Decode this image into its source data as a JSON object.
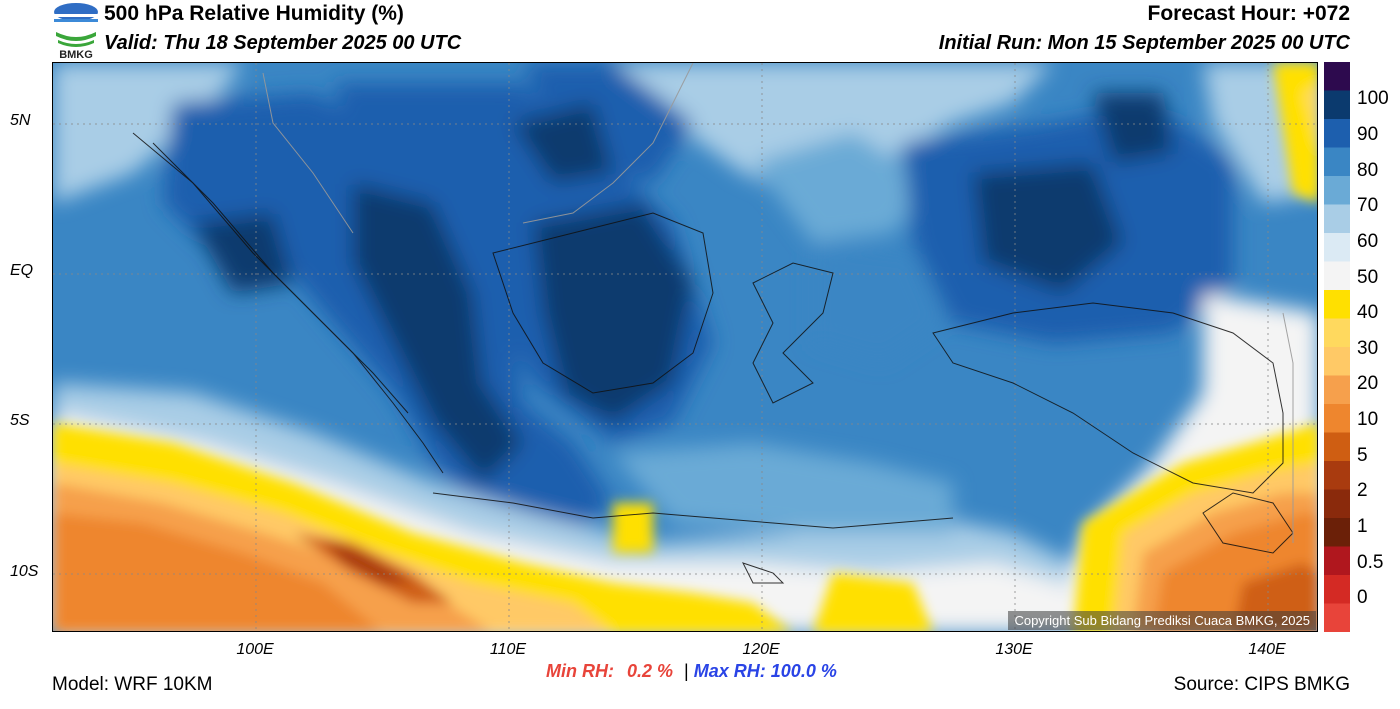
{
  "header": {
    "title": "500 hPa Relative Humidity (%)",
    "valid": "Valid: Thu 18 September 2025 00 UTC",
    "forecast_hour": "Forecast Hour: +072",
    "initial_run": "Initial Run: Mon 15 September 2025 00 UTC"
  },
  "logo": {
    "text": "BMKG"
  },
  "map": {
    "lat_labels": [
      "5N",
      "EQ",
      "5S",
      "10S"
    ],
    "lon_labels": [
      "100E",
      "110E",
      "120E",
      "130E",
      "140E"
    ],
    "copyright": "Copyright Sub Bidang Prediksi Cuaca BMKG, 2025"
  },
  "colorbar": {
    "labels": [
      "100",
      "90",
      "80",
      "70",
      "60",
      "50",
      "40",
      "30",
      "20",
      "10",
      "5",
      "2",
      "1",
      "0.5",
      "0"
    ],
    "colors": [
      "#2d0a4e",
      "#0b3a6e",
      "#1d5fae",
      "#3a86c4",
      "#6aaad6",
      "#a9cde6",
      "#dbeaf4",
      "#f4f4f4",
      "#ffe000",
      "#ffd95e",
      "#ffc966",
      "#f6a04c",
      "#ee862e",
      "#cf5e12",
      "#a93b0f",
      "#8a2a0c",
      "#6b2008",
      "#b0171e",
      "#d42a24",
      "#e8443a"
    ]
  },
  "stats": {
    "min_label": "Min RH:",
    "min_value": "0.2 %",
    "separator": "|",
    "max_label": "Max RH:",
    "max_value": "100.0 %"
  },
  "footer": {
    "model": "Model: WRF 10KM",
    "source": "Source: CIPS BMKG"
  }
}
